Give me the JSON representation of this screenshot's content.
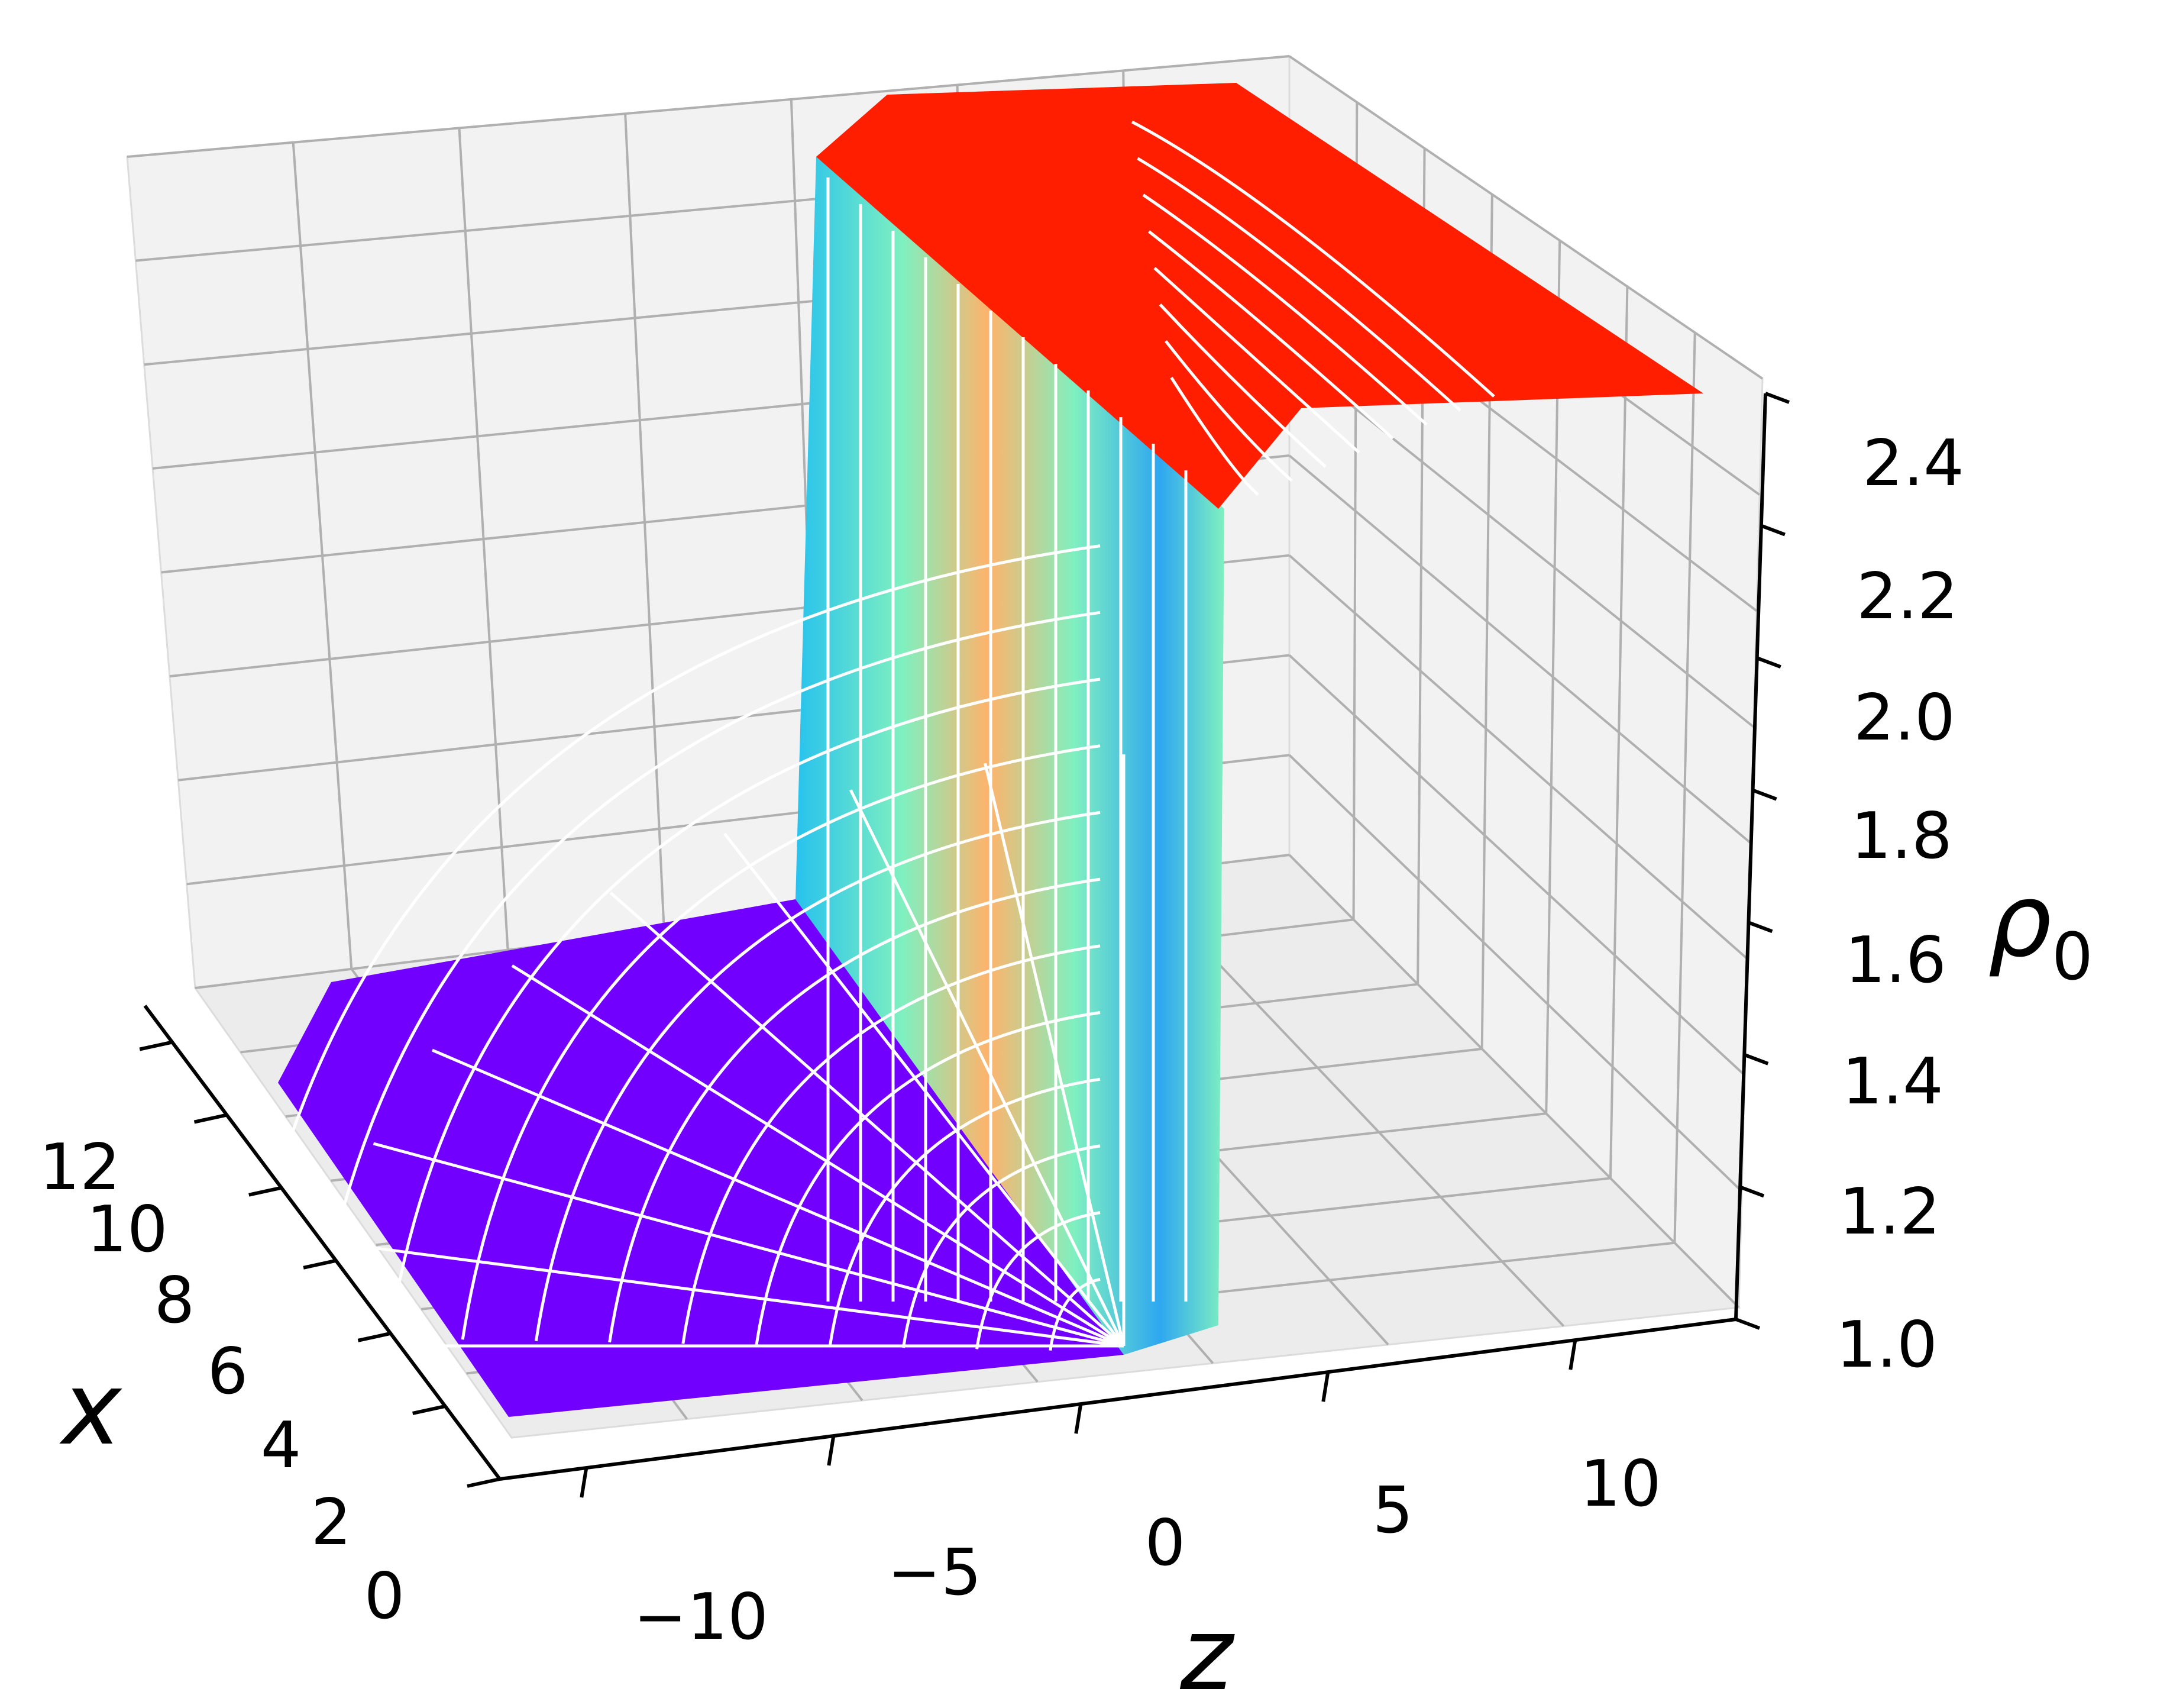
{
  "chart_data": {
    "type": "surface",
    "title": "",
    "xlabel": "x",
    "ylabel": "z",
    "zlabel": "ρ",
    "zlabel_subscript": "0",
    "x_ticks": [
      "0",
      "2",
      "4",
      "6",
      "8",
      "10",
      "12"
    ],
    "y_ticks": [
      "−10",
      "−5",
      "0",
      "5",
      "10"
    ],
    "z_ticks": [
      "1.0",
      "1.2",
      "1.4",
      "1.6",
      "1.8",
      "2.0",
      "2.2",
      "2.4"
    ],
    "xlim": [
      0,
      13
    ],
    "ylim": [
      -13,
      13
    ],
    "zlim": [
      1.0,
      2.45
    ],
    "grid": true,
    "colormap": "rainbow",
    "surface": {
      "description_points": [
        {
          "z": -13,
          "rho": 1.0
        },
        {
          "z": -1,
          "rho": 1.0
        },
        {
          "z": 0,
          "rho": 1.7
        },
        {
          "z": 1,
          "rho": 2.4
        },
        {
          "z": 13,
          "rho": 2.4
        }
      ],
      "low_value": 1.0,
      "high_value": 2.4,
      "step_location_z": 0
    },
    "colors": {
      "low": "#7000ff",
      "high": "#ff1a00",
      "mesh": "#ffffff",
      "pane": "#f2f2f2",
      "grid": "#b0b0b0"
    }
  }
}
